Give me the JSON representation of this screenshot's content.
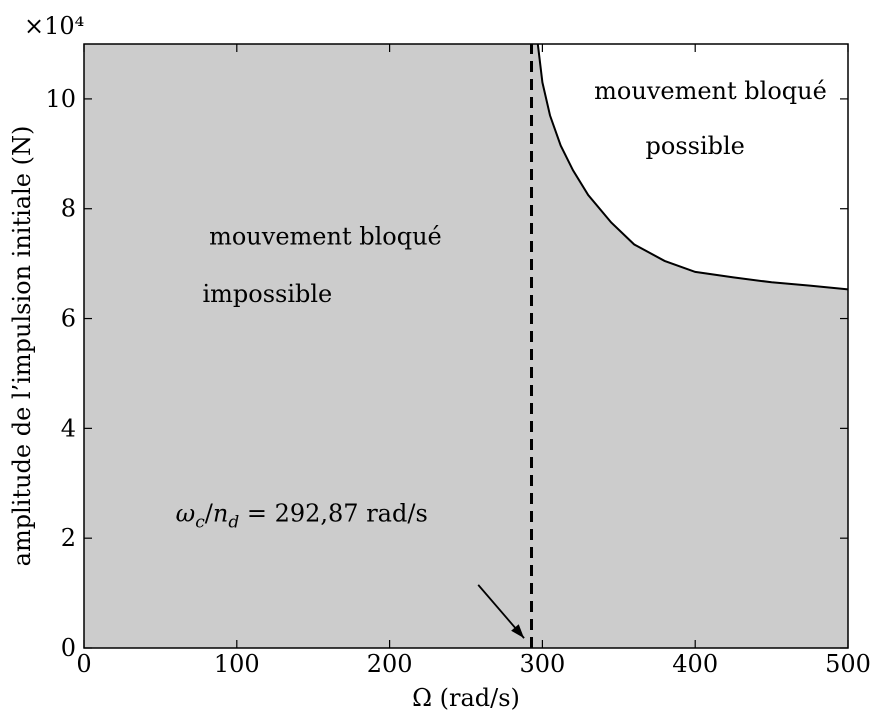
{
  "chart_data": {
    "type": "area",
    "title": "",
    "xlabel": "Ω (rad/s)",
    "ylabel": "amplitude de l’impulsion initiale (N)",
    "y_scale_label": "×10⁴",
    "xlim": [
      0,
      500
    ],
    "ylim": [
      0,
      11
    ],
    "y_unit_multiplier": 10000,
    "x_ticks": [
      0,
      100,
      200,
      300,
      400,
      500
    ],
    "y_ticks": [
      0,
      2,
      4,
      6,
      8,
      10
    ],
    "grid": false,
    "legend": "none",
    "region_colors": {
      "impossible": "#cccccc",
      "possible": "#ffffff"
    },
    "boundary_curve": {
      "x": [
        297,
        300,
        305,
        312,
        320,
        330,
        345,
        360,
        380,
        400,
        425,
        450,
        475,
        500
      ],
      "y": [
        11.0,
        10.3,
        9.7,
        9.15,
        8.7,
        8.25,
        7.75,
        7.35,
        7.05,
        6.85,
        6.75,
        6.66,
        6.6,
        6.53
      ]
    },
    "critical_line": {
      "x": 292.87,
      "label": "ω_c/n_d = 292,87 rad/s",
      "label_parts": {
        "omega": "ω",
        "omega_sub": "c",
        "slash": "/",
        "n": "n",
        "n_sub": "d",
        "value": " = 292,87 rad/s"
      }
    },
    "regions": [
      {
        "name": "impossible",
        "line1": "mouvement bloqué",
        "line2": "impossible"
      },
      {
        "name": "possible",
        "line1": "mouvement bloqué",
        "line2": "possible"
      }
    ]
  }
}
